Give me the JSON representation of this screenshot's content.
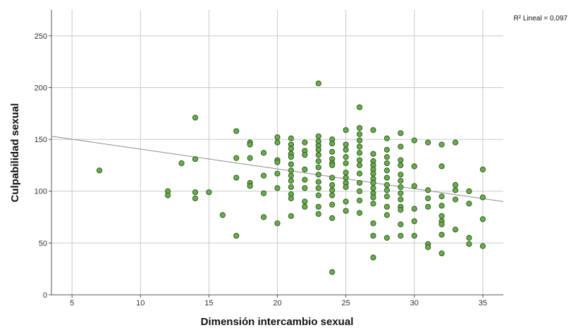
{
  "chart_data": {
    "type": "scatter",
    "title": "",
    "xlabel": "Dimensión intercambio sexual",
    "ylabel": "Culpabilidad sexual",
    "xlim": [
      3.5,
      36.5
    ],
    "ylim": [
      0,
      275
    ],
    "x_ticks": [
      "5",
      "10",
      "15",
      "20",
      "25",
      "30",
      "35"
    ],
    "x_tick_values": [
      5,
      10,
      15,
      20,
      25,
      30,
      35
    ],
    "y_ticks": [
      "0",
      "50",
      "100",
      "150",
      "200",
      "250"
    ],
    "y_tick_values": [
      0,
      50,
      100,
      150,
      200,
      250
    ],
    "grid": true,
    "annotation": "R² Lineal = 0,097",
    "fit_line": {
      "x": [
        3.5,
        36.5
      ],
      "y": [
        153,
        90
      ]
    },
    "colors": {
      "marker_fill": "#6aab4c",
      "marker_edge": "#2f5a22",
      "fit_line": "#8c8c8c",
      "grid": "#c8c8c8"
    },
    "points": [
      [
        7,
        120
      ],
      [
        12,
        100
      ],
      [
        12,
        96
      ],
      [
        13,
        127
      ],
      [
        14,
        171
      ],
      [
        14,
        131
      ],
      [
        14,
        99
      ],
      [
        14,
        93
      ],
      [
        15,
        99
      ],
      [
        16,
        77
      ],
      [
        17,
        158
      ],
      [
        17,
        132
      ],
      [
        17,
        113
      ],
      [
        17,
        57
      ],
      [
        18,
        147
      ],
      [
        18,
        145
      ],
      [
        18,
        132
      ],
      [
        18,
        108
      ],
      [
        18,
        105
      ],
      [
        19,
        137
      ],
      [
        19,
        115
      ],
      [
        19,
        98
      ],
      [
        19,
        75
      ],
      [
        20,
        152
      ],
      [
        20,
        147
      ],
      [
        20,
        130
      ],
      [
        20,
        128
      ],
      [
        20,
        117
      ],
      [
        20,
        103
      ],
      [
        20,
        69
      ],
      [
        21,
        151
      ],
      [
        21,
        145
      ],
      [
        21,
        141
      ],
      [
        21,
        136
      ],
      [
        21,
        133
      ],
      [
        21,
        126
      ],
      [
        21,
        120
      ],
      [
        21,
        115
      ],
      [
        21,
        110
      ],
      [
        21,
        104
      ],
      [
        21,
        97
      ],
      [
        21,
        93
      ],
      [
        21,
        76
      ],
      [
        22,
        147
      ],
      [
        22,
        139
      ],
      [
        22,
        135
      ],
      [
        22,
        121
      ],
      [
        22,
        111
      ],
      [
        22,
        103
      ],
      [
        22,
        90
      ],
      [
        22,
        85
      ],
      [
        23,
        204
      ],
      [
        23,
        153
      ],
      [
        23,
        148
      ],
      [
        23,
        144
      ],
      [
        23,
        140
      ],
      [
        23,
        135
      ],
      [
        23,
        129
      ],
      [
        23,
        123
      ],
      [
        23,
        116
      ],
      [
        23,
        109
      ],
      [
        23,
        103
      ],
      [
        23,
        96
      ],
      [
        23,
        85
      ],
      [
        23,
        78
      ],
      [
        24,
        150
      ],
      [
        24,
        146
      ],
      [
        24,
        138
      ],
      [
        24,
        131
      ],
      [
        24,
        127
      ],
      [
        24,
        125
      ],
      [
        24,
        113
      ],
      [
        24,
        106
      ],
      [
        24,
        101
      ],
      [
        24,
        96
      ],
      [
        24,
        87
      ],
      [
        24,
        74
      ],
      [
        24,
        22
      ],
      [
        25,
        159
      ],
      [
        25,
        145
      ],
      [
        25,
        140
      ],
      [
        25,
        133
      ],
      [
        25,
        127
      ],
      [
        25,
        118
      ],
      [
        25,
        113
      ],
      [
        25,
        108
      ],
      [
        25,
        104
      ],
      [
        25,
        90
      ],
      [
        25,
        81
      ],
      [
        26,
        181
      ],
      [
        26,
        161
      ],
      [
        26,
        155
      ],
      [
        26,
        149
      ],
      [
        26,
        143
      ],
      [
        26,
        137
      ],
      [
        26,
        130
      ],
      [
        26,
        125
      ],
      [
        26,
        117
      ],
      [
        26,
        108
      ],
      [
        26,
        100
      ],
      [
        26,
        91
      ],
      [
        26,
        79
      ],
      [
        27,
        159
      ],
      [
        27,
        136
      ],
      [
        27,
        129
      ],
      [
        27,
        125
      ],
      [
        27,
        121
      ],
      [
        27,
        117
      ],
      [
        27,
        112
      ],
      [
        27,
        108
      ],
      [
        27,
        103
      ],
      [
        27,
        98
      ],
      [
        27,
        94
      ],
      [
        27,
        88
      ],
      [
        27,
        69
      ],
      [
        27,
        57
      ],
      [
        27,
        36
      ],
      [
        28,
        151
      ],
      [
        28,
        140
      ],
      [
        28,
        133
      ],
      [
        28,
        127
      ],
      [
        28,
        120
      ],
      [
        28,
        113
      ],
      [
        28,
        106
      ],
      [
        28,
        101
      ],
      [
        28,
        95
      ],
      [
        28,
        85
      ],
      [
        28,
        77
      ],
      [
        28,
        55
      ],
      [
        29,
        156
      ],
      [
        29,
        143
      ],
      [
        29,
        130
      ],
      [
        29,
        125
      ],
      [
        29,
        116
      ],
      [
        29,
        110
      ],
      [
        29,
        104
      ],
      [
        29,
        98
      ],
      [
        29,
        92
      ],
      [
        29,
        85
      ],
      [
        29,
        82
      ],
      [
        29,
        68
      ],
      [
        29,
        57
      ],
      [
        30,
        149
      ],
      [
        30,
        124
      ],
      [
        30,
        105
      ],
      [
        30,
        83
      ],
      [
        30,
        71
      ],
      [
        30,
        57
      ],
      [
        31,
        147
      ],
      [
        31,
        101
      ],
      [
        31,
        93
      ],
      [
        31,
        85
      ],
      [
        31,
        49
      ],
      [
        31,
        46
      ],
      [
        32,
        145
      ],
      [
        32,
        124
      ],
      [
        32,
        95
      ],
      [
        32,
        86
      ],
      [
        32,
        76
      ],
      [
        32,
        71
      ],
      [
        32,
        68
      ],
      [
        32,
        58
      ],
      [
        32,
        40
      ],
      [
        33,
        147
      ],
      [
        33,
        106
      ],
      [
        33,
        101
      ],
      [
        33,
        92
      ],
      [
        33,
        63
      ],
      [
        34,
        100
      ],
      [
        34,
        88
      ],
      [
        34,
        55
      ],
      [
        34,
        49
      ],
      [
        35,
        121
      ],
      [
        35,
        94
      ],
      [
        35,
        73
      ],
      [
        35,
        47
      ]
    ]
  }
}
